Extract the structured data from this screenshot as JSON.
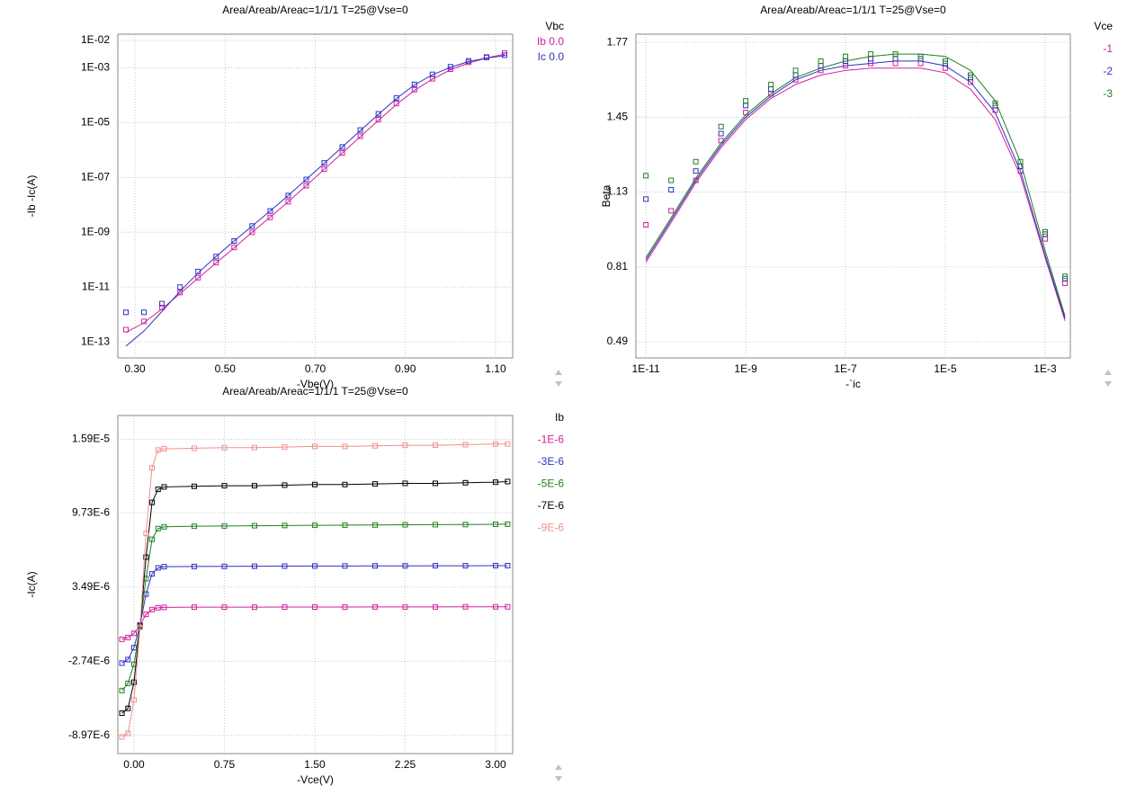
{
  "chart_data": [
    {
      "type": "scatter",
      "title": "Area/Areab/Areac=1/1/1   T=25@Vse=0",
      "x_label": "-Vbe(V)",
      "y_label": "-Ib  -Ic(A)",
      "ylog": true,
      "xlog": false,
      "grid": true,
      "legend_title": "Vbc",
      "xlim": [
        0.262,
        1.138
      ],
      "ylim": [
        2.6e-14,
        0.017
      ],
      "xticks": [
        {
          "value": 0.3,
          "label": "0.30"
        },
        {
          "value": 0.5,
          "label": "0.50"
        },
        {
          "value": 0.7,
          "label": "0.70"
        },
        {
          "value": 0.9,
          "label": "0.90"
        },
        {
          "value": 1.1,
          "label": "1.10"
        }
      ],
      "yticks": [
        {
          "value": 0.01,
          "label": "1E-02"
        },
        {
          "value": 0.001,
          "label": "1E-03"
        },
        {
          "value": 1e-05,
          "label": "1E-05"
        },
        {
          "value": 1e-07,
          "label": "1E-07"
        },
        {
          "value": 1e-09,
          "label": "1E-09"
        },
        {
          "value": 1e-11,
          "label": "1E-11"
        },
        {
          "value": 1e-13,
          "label": "1E-13"
        }
      ],
      "x": [
        0.28,
        0.32,
        0.36,
        0.4,
        0.44,
        0.48,
        0.52,
        0.56,
        0.6,
        0.64,
        0.68,
        0.72,
        0.76,
        0.8,
        0.84,
        0.88,
        0.92,
        0.96,
        1.0,
        1.04,
        1.08,
        1.12
      ],
      "series": [
        {
          "name": "Ib 0.0",
          "color": "#d020a0",
          "values": [
            2.8e-13,
            5.6e-13,
            1.8e-12,
            6.3e-12,
            2.2e-11,
            7.9e-11,
            2.8e-10,
            1e-09,
            3.5e-09,
            1.3e-08,
            5e-08,
            2e-07,
            7.9e-07,
            3.2e-06,
            1.3e-05,
            5e-05,
            0.00016,
            0.0004,
            0.00089,
            0.0016,
            0.0025,
            0.0035
          ],
          "fit": [
            2.2e-13,
            5e-13,
            1.6e-12,
            5.8e-12,
            2.1e-11,
            7.6e-11,
            2.7e-10,
            1e-09,
            3.6e-09,
            1.3e-08,
            5e-08,
            2e-07,
            7.8e-07,
            3.1e-06,
            1.2e-05,
            4.6e-05,
            0.00015,
            0.00039,
            0.00085,
            0.0015,
            0.0023,
            0.0032
          ]
        },
        {
          "name": "Ic 0.0",
          "color": "#3030c0",
          "values": [
            1.2e-12,
            1.2e-12,
            2.5e-12,
            1e-11,
            3.7e-11,
            1.3e-10,
            4.8e-10,
            1.7e-09,
            6e-09,
            2.2e-08,
            8.5e-08,
            3.4e-07,
            1.3e-06,
            5.4e-06,
            2.1e-05,
            8e-05,
            0.00025,
            0.00058,
            0.0011,
            0.0018,
            0.0024,
            0.0029
          ],
          "fit": [
            7e-14,
            2.5e-13,
            1.3e-12,
            7e-12,
            3.3e-11,
            1.3e-10,
            4.8e-10,
            1.7e-09,
            6e-09,
            2.2e-08,
            8.5e-08,
            3.3e-07,
            1.3e-06,
            5.2e-06,
            2e-05,
            7.6e-05,
            0.00024,
            0.00056,
            0.00105,
            0.0017,
            0.0023,
            0.0028
          ]
        }
      ]
    },
    {
      "type": "scatter",
      "title": "Area/Areab/Areac=1/1/1   T=25@Vse=0",
      "x_label": "-`ic",
      "y_label": "Beta",
      "ylog": false,
      "xlog": true,
      "grid": true,
      "legend_title": "Vce",
      "xlim": [
        6.3e-12,
        0.0032
      ],
      "ylim": [
        0.421,
        1.805
      ],
      "xticks": [
        {
          "value": 1e-11,
          "label": "1E-11"
        },
        {
          "value": 1e-09,
          "label": "1E-9"
        },
        {
          "value": 1e-07,
          "label": "1E-7"
        },
        {
          "value": 1e-05,
          "label": "1E-5"
        },
        {
          "value": 0.001,
          "label": "1E-3"
        }
      ],
      "yticks": [
        1.77,
        1.45,
        1.13,
        0.81,
        0.49
      ],
      "x": [
        1e-11,
        3.2e-11,
        1e-10,
        3.2e-10,
        1e-09,
        3.2e-09,
        1e-08,
        3.2e-08,
        1e-07,
        3.2e-07,
        1e-06,
        3.2e-06,
        1e-05,
        3.2e-05,
        0.0001,
        0.00032,
        0.001,
        0.0025
      ],
      "series": [
        {
          "name": "-1",
          "color": "#d020a0",
          "values": [
            0.99,
            1.05,
            1.18,
            1.35,
            1.47,
            1.55,
            1.61,
            1.65,
            1.67,
            1.68,
            1.68,
            1.68,
            1.66,
            1.6,
            1.48,
            1.22,
            0.93,
            0.74
          ],
          "fit": [
            0.83,
            1.0,
            1.17,
            1.32,
            1.44,
            1.53,
            1.59,
            1.63,
            1.65,
            1.66,
            1.66,
            1.66,
            1.64,
            1.57,
            1.44,
            1.2,
            0.85,
            0.58
          ]
        },
        {
          "name": "-2",
          "color": "#3030c0",
          "values": [
            1.1,
            1.14,
            1.22,
            1.38,
            1.5,
            1.57,
            1.63,
            1.67,
            1.69,
            1.7,
            1.7,
            1.7,
            1.68,
            1.62,
            1.5,
            1.24,
            0.95,
            0.76
          ],
          "fit": [
            0.84,
            1.01,
            1.18,
            1.33,
            1.45,
            1.54,
            1.61,
            1.65,
            1.67,
            1.68,
            1.69,
            1.69,
            1.67,
            1.6,
            1.47,
            1.22,
            0.86,
            0.59
          ]
        },
        {
          "name": "-3",
          "color": "#208020",
          "values": [
            1.2,
            1.18,
            1.26,
            1.41,
            1.52,
            1.59,
            1.65,
            1.69,
            1.71,
            1.72,
            1.72,
            1.71,
            1.69,
            1.63,
            1.51,
            1.26,
            0.96,
            0.77
          ],
          "fit": [
            0.85,
            1.02,
            1.19,
            1.34,
            1.46,
            1.55,
            1.62,
            1.66,
            1.69,
            1.71,
            1.72,
            1.72,
            1.71,
            1.65,
            1.52,
            1.26,
            0.88,
            0.6
          ]
        }
      ]
    },
    {
      "type": "scatter",
      "title": "Area/Areab/Areac=1/1/1   T=25@Vse=0",
      "x_label": "-Vce(V)",
      "y_label": "-Ic(A)",
      "ylog": false,
      "xlog": false,
      "grid": true,
      "legend_title": "Ib",
      "connect": true,
      "xlim": [
        -0.134,
        3.142
      ],
      "ylim": [
        -1.05e-05,
        1.79e-05
      ],
      "xticks": [
        {
          "value": 0,
          "label": "0.00"
        },
        {
          "value": 0.75,
          "label": "0.75"
        },
        {
          "value": 1.5,
          "label": "1.50"
        },
        {
          "value": 2.25,
          "label": "2.25"
        },
        {
          "value": 3,
          "label": "3.00"
        }
      ],
      "yticks": [
        {
          "value": 1.59e-05,
          "label": "1.59E-5"
        },
        {
          "value": 9.73e-06,
          "label": "9.73E-6"
        },
        {
          "value": 3.49e-06,
          "label": "3.49E-6"
        },
        {
          "value": -2.74e-06,
          "label": "-2.74E-6"
        },
        {
          "value": -8.97e-06,
          "label": "-8.97E-6"
        }
      ],
      "x": [
        -0.1,
        -0.05,
        0,
        0.05,
        0.1,
        0.15,
        0.2,
        0.25,
        0.5,
        0.75,
        1,
        1.25,
        1.5,
        1.75,
        2,
        2.25,
        2.5,
        2.75,
        3,
        3.1
      ],
      "series": [
        {
          "name": "-1E-6",
          "color": "#d020a0",
          "values": [
            -9e-07,
            -7.5e-07,
            -4e-07,
            3e-07,
            1.2e-06,
            1.6e-06,
            1.75e-06,
            1.78e-06,
            1.8e-06,
            1.8e-06,
            1.8e-06,
            1.81e-06,
            1.81e-06,
            1.81e-06,
            1.82e-06,
            1.82e-06,
            1.82e-06,
            1.83e-06,
            1.83e-06,
            1.83e-06
          ]
        },
        {
          "name": "-3E-6",
          "color": "#3030c0",
          "values": [
            -2.9e-06,
            -2.6e-06,
            -1.6e-06,
            3e-07,
            2.9e-06,
            4.6e-06,
            5.1e-06,
            5.2e-06,
            5.22e-06,
            5.23e-06,
            5.24e-06,
            5.25e-06,
            5.26e-06,
            5.26e-06,
            5.27e-06,
            5.27e-06,
            5.28e-06,
            5.28e-06,
            5.29e-06,
            5.29e-06
          ]
        },
        {
          "name": "-5E-6",
          "color": "#208020",
          "values": [
            -5.2e-06,
            -4.6e-06,
            -3e-06,
            2e-07,
            4.2e-06,
            7.5e-06,
            8.4e-06,
            8.55e-06,
            8.6e-06,
            8.62e-06,
            8.64e-06,
            8.66e-06,
            8.68e-06,
            8.69e-06,
            8.7e-06,
            8.72e-06,
            8.73e-06,
            8.74e-06,
            8.76e-06,
            8.77e-06
          ]
        },
        {
          "name": "-7E-6",
          "color": "#000000",
          "values": [
            -7.1e-06,
            -6.7e-06,
            -4.5e-06,
            2e-07,
            6e-06,
            1.06e-05,
            1.17e-05,
            1.19e-05,
            1.195e-05,
            1.2e-05,
            1.2e-05,
            1.205e-05,
            1.21e-05,
            1.21e-05,
            1.215e-05,
            1.22e-05,
            1.22e-05,
            1.225e-05,
            1.23e-05,
            1.235e-05
          ]
        },
        {
          "name": "-9E-6",
          "color": "#f09090",
          "values": [
            -9.1e-06,
            -8.8e-06,
            -6e-06,
            1e-07,
            8e-06,
            1.35e-05,
            1.5e-05,
            1.51e-05,
            1.515e-05,
            1.52e-05,
            1.52e-05,
            1.525e-05,
            1.53e-05,
            1.53e-05,
            1.535e-05,
            1.54e-05,
            1.54e-05,
            1.545e-05,
            1.55e-05,
            1.55e-05
          ]
        }
      ]
    }
  ]
}
